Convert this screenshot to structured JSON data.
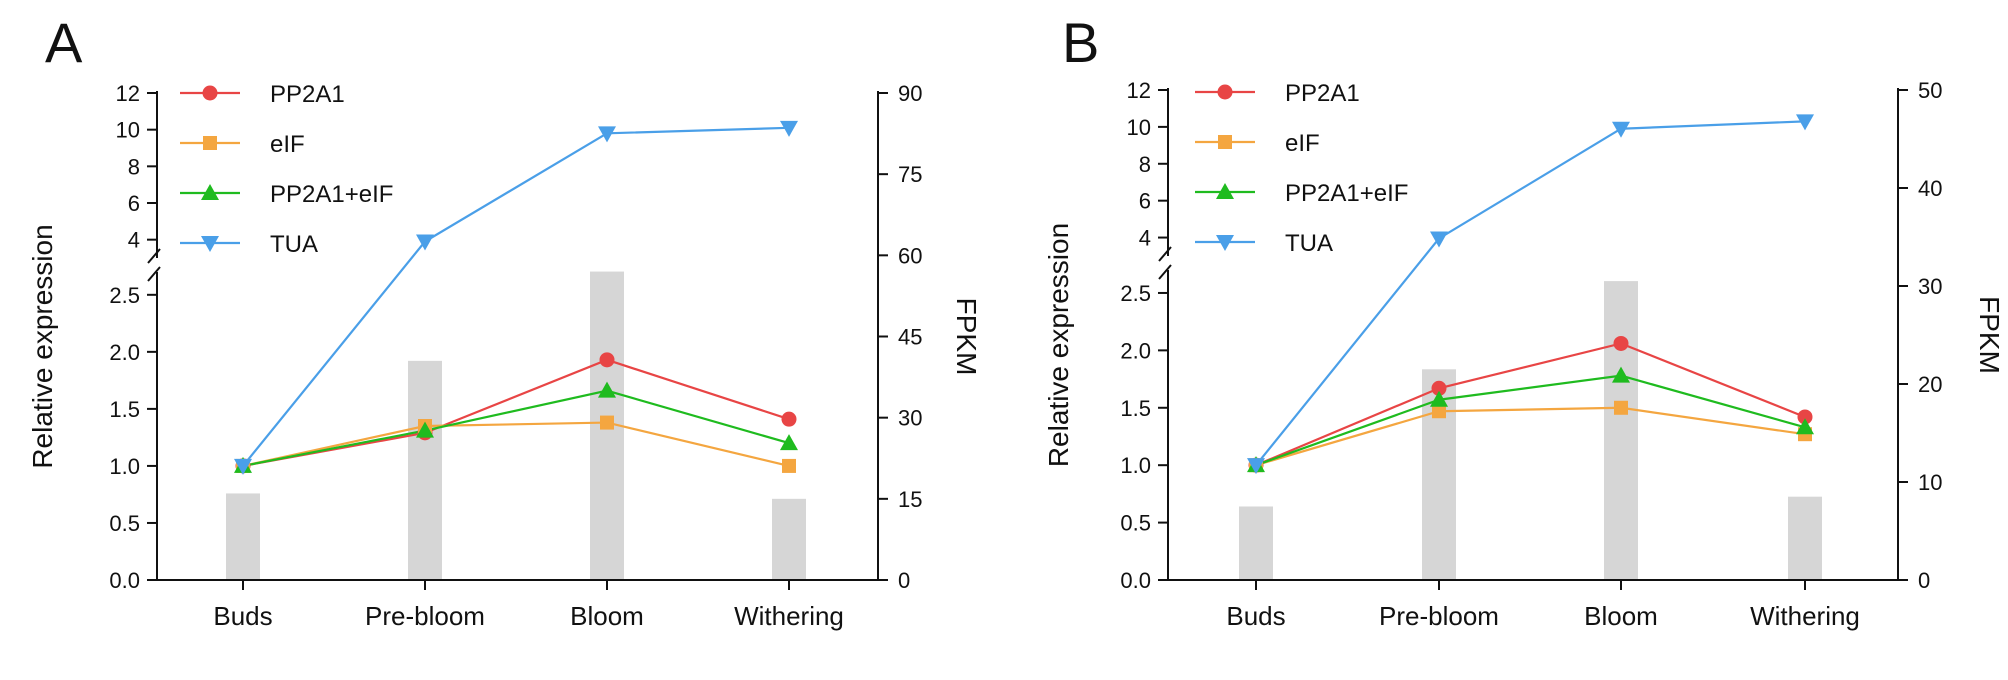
{
  "chart_data": [
    {
      "type": "bar+line",
      "panel_label": "A",
      "categories": [
        "Buds",
        "Pre-bloom",
        "Bloom",
        "Withering"
      ],
      "bars": {
        "name": "FPKM",
        "axis": "right",
        "values": [
          16,
          40.5,
          57,
          15
        ]
      },
      "series": [
        {
          "name": "PP2A1",
          "color": "#e84545",
          "marker": "circle",
          "values": [
            1.0,
            1.29,
            1.93,
            1.41
          ]
        },
        {
          "name": "eIF",
          "color": "#f4a640",
          "marker": "square",
          "values": [
            1.0,
            1.35,
            1.38,
            1.0
          ]
        },
        {
          "name": "PP2A1+eIF",
          "color": "#1fbb1f",
          "marker": "triangle-up",
          "values": [
            1.0,
            1.31,
            1.66,
            1.2
          ]
        },
        {
          "name": "TUA",
          "color": "#4a9fe8",
          "marker": "triangle-down",
          "values": [
            1.0,
            3.9,
            9.8,
            10.1
          ]
        }
      ],
      "ylabel": "Relative expression",
      "y2label": "FPKM",
      "y_lower_ticks": [
        "0.0",
        "0.5",
        "1.0",
        "1.5",
        "2.0",
        "2.5"
      ],
      "y_upper_ticks": [
        "4",
        "6",
        "8",
        "10",
        "12"
      ],
      "y2_ticks": [
        "0",
        "15",
        "30",
        "45",
        "60",
        "75",
        "90"
      ],
      "ylim_lower": [
        0,
        2.7
      ],
      "ylim_upper": [
        3,
        12
      ],
      "y2lim": [
        0,
        90
      ],
      "legend": "top-left"
    },
    {
      "type": "bar+line",
      "panel_label": "B",
      "categories": [
        "Buds",
        "Pre-bloom",
        "Bloom",
        "Withering"
      ],
      "bars": {
        "name": "FPKM",
        "axis": "right",
        "values": [
          7.5,
          21.5,
          30.5,
          8.5
        ]
      },
      "series": [
        {
          "name": "PP2A1",
          "color": "#e84545",
          "marker": "circle",
          "values": [
            1.0,
            1.67,
            2.06,
            1.42
          ]
        },
        {
          "name": "eIF",
          "color": "#f4a640",
          "marker": "square",
          "values": [
            1.0,
            1.47,
            1.5,
            1.27
          ]
        },
        {
          "name": "PP2A1+eIF",
          "color": "#1fbb1f",
          "marker": "triangle-up",
          "values": [
            1.0,
            1.57,
            1.78,
            1.33
          ]
        },
        {
          "name": "TUA",
          "color": "#4a9fe8",
          "marker": "triangle-down",
          "values": [
            1.0,
            3.95,
            9.9,
            10.3
          ]
        }
      ],
      "ylabel": "Relative expression",
      "y2label": "FPKM",
      "y_lower_ticks": [
        "0.0",
        "0.5",
        "1.0",
        "1.5",
        "2.0",
        "2.5"
      ],
      "y_upper_ticks": [
        "4",
        "6",
        "8",
        "10",
        "12"
      ],
      "y2_ticks": [
        "0",
        "10",
        "20",
        "30",
        "40",
        "50"
      ],
      "ylim_lower": [
        0,
        2.7
      ],
      "ylim_upper": [
        3,
        12
      ],
      "y2lim": [
        0,
        50
      ],
      "legend": "top-left"
    }
  ]
}
